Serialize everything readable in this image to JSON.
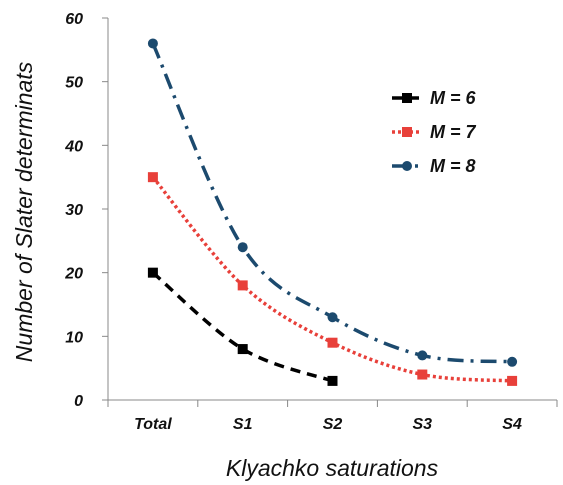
{
  "chart_data": {
    "type": "line",
    "title": "",
    "xlabel": "Klyachko saturations",
    "ylabel": "Number of Slater determinats",
    "categories": [
      "Total",
      "S1",
      "S2",
      "S3",
      "S4"
    ],
    "y_ticks": [
      "0",
      "10",
      "20",
      "30",
      "40",
      "50",
      "60"
    ],
    "ylim": [
      0,
      60
    ],
    "grid": false,
    "legend_position": "top-right",
    "series": [
      {
        "name": "M = 6",
        "color": "#000000",
        "marker": "square",
        "line_style": "dashed",
        "values": [
          20,
          8,
          3,
          null,
          null
        ]
      },
      {
        "name": "M = 7",
        "color": "#e8403a",
        "marker": "square",
        "line_style": "dotted",
        "values": [
          35,
          18,
          9,
          4,
          3
        ]
      },
      {
        "name": "M = 8",
        "color": "#1c4a6e",
        "marker": "circle",
        "line_style": "dash-dot",
        "values": [
          56,
          24,
          13,
          7,
          6
        ]
      }
    ]
  }
}
